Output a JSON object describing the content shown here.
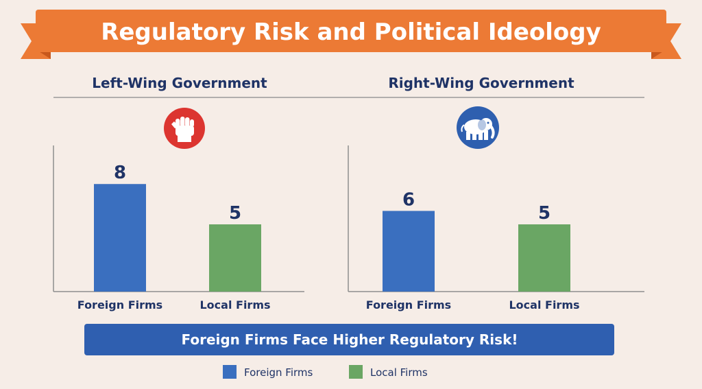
{
  "banner_title": "Regulatory Risk and Political Ideology",
  "panels": [
    {
      "subtitle": "Left-Wing Government",
      "icon": "raised-fist-icon"
    },
    {
      "subtitle": "Right-Wing Government",
      "icon": "elephant-icon"
    }
  ],
  "conclusion": "Foreign Firms Face Higher Regulatory Risk!",
  "legend": [
    {
      "label": "Foreign Firms",
      "color": "#3a6fbf"
    },
    {
      "label": "Local Firms",
      "color": "#6aa664"
    }
  ],
  "colors": {
    "banner": "#ec7a35",
    "banner_dark": "#c8581c",
    "conclusion_bar": "#2f5fb0",
    "fist_badge": "#dc3530",
    "elephant_badge": "#2e5faf",
    "title_text": "#1f3366"
  },
  "chart_data": [
    {
      "type": "bar",
      "title": "Left-Wing Government",
      "categories": [
        "Foreign Firms",
        "Local Firms"
      ],
      "values": [
        8,
        5
      ],
      "colors": [
        "#3a6fbf",
        "#6aa664"
      ],
      "ylim": [
        0,
        10
      ],
      "grid": false
    },
    {
      "type": "bar",
      "title": "Right-Wing Government",
      "categories": [
        "Foreign Firms",
        "Local Firms"
      ],
      "values": [
        6,
        5
      ],
      "colors": [
        "#3a6fbf",
        "#6aa664"
      ],
      "ylim": [
        0,
        10
      ],
      "grid": false
    }
  ]
}
